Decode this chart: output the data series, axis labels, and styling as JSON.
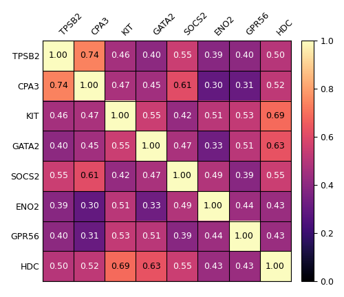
{
  "labels": [
    "TPSB2",
    "CPA3",
    "KIT",
    "GATA2",
    "SOCS2",
    "ENO2",
    "GPR56",
    "HDC"
  ],
  "matrix": [
    [
      1.0,
      0.74,
      0.46,
      0.4,
      0.55,
      0.39,
      0.4,
      0.5
    ],
    [
      0.74,
      1.0,
      0.47,
      0.45,
      0.61,
      0.3,
      0.31,
      0.52
    ],
    [
      0.46,
      0.47,
      1.0,
      0.55,
      0.42,
      0.51,
      0.53,
      0.69
    ],
    [
      0.4,
      0.45,
      0.55,
      1.0,
      0.47,
      0.33,
      0.51,
      0.63
    ],
    [
      0.55,
      0.61,
      0.42,
      0.47,
      1.0,
      0.49,
      0.39,
      0.55
    ],
    [
      0.39,
      0.3,
      0.51,
      0.33,
      0.49,
      1.0,
      0.44,
      0.43
    ],
    [
      0.4,
      0.31,
      0.53,
      0.51,
      0.39,
      0.44,
      1.0,
      0.43
    ],
    [
      0.5,
      0.52,
      0.69,
      0.63,
      0.55,
      0.43,
      0.43,
      1.0
    ]
  ],
  "cmap": "magma",
  "vmin": 0.0,
  "vmax": 1.0,
  "colorbar_ticks": [
    0.0,
    0.2,
    0.4,
    0.6,
    0.8,
    1.0
  ],
  "fontsize_annot": 9,
  "fontsize_labels": 9,
  "fontsize_cb": 9,
  "figsize": [
    5.0,
    4.32
  ],
  "dpi": 100,
  "grid_color": "black",
  "grid_lw": 0.8,
  "luminance_threshold": 0.45
}
